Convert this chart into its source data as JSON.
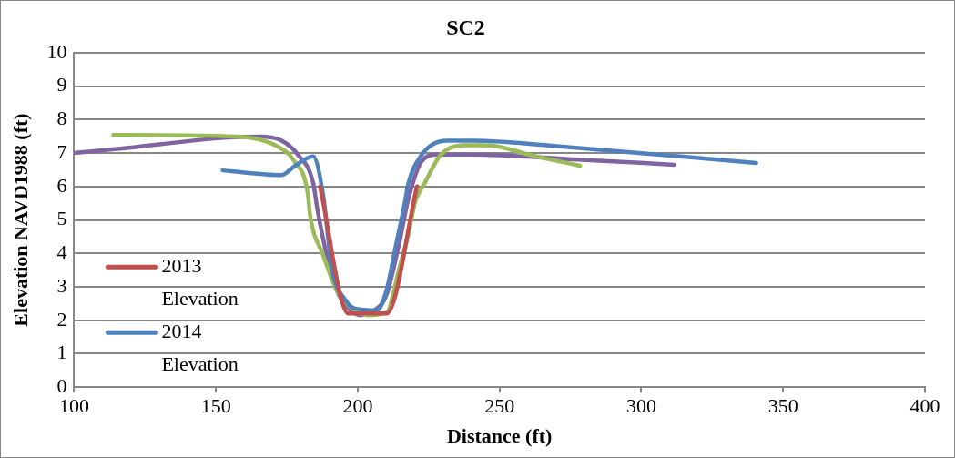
{
  "chart_data": {
    "type": "line",
    "title": "SC2",
    "xlabel": "Distance (ft)",
    "ylabel": "Elevation NAVD1988 (ft)",
    "xlim": [
      100,
      400
    ],
    "xticks": [
      100,
      150,
      200,
      250,
      300,
      350,
      400
    ],
    "ylim": [
      0,
      10
    ],
    "yticks": [
      0,
      1,
      2,
      3,
      4,
      5,
      6,
      7,
      8,
      9,
      10
    ],
    "grid": "y",
    "legend": "bottom left",
    "marker": "none",
    "line_style": "solid",
    "series": [
      {
        "name": "2013 Elevation",
        "color": "#c0504d",
        "x": [
          186.7,
          196.7,
          210.2,
          220.9
        ],
        "values": [
          6.0,
          2.2,
          2.2,
          6.0
        ]
      },
      {
        "name": "2014 Elevation",
        "color": "#4f81bd",
        "x": [
          152.4,
          173.2,
          177.6,
          184.3,
          187.7,
          191,
          195.7,
          199,
          206.8,
          210,
          213.5,
          216.9,
          217.6,
          222.6,
          231.3,
          240.4,
          274,
          340.5
        ],
        "values": [
          6.48,
          6.34,
          6.6,
          6.9,
          5.8,
          3.5,
          2.6,
          2.35,
          2.3,
          2.85,
          4.25,
          5.65,
          6.0,
          6.95,
          7.37,
          7.37,
          7.18,
          6.7
        ]
      },
      {
        "color": "#9bbb59",
        "x": [
          113.8,
          154,
          170.9,
          177.6,
          182.3,
          183.3,
          187.7,
          192.4,
          197.7,
          203.5,
          210.2,
          214.5,
          217.9,
          220.3,
          223.6,
          229.3,
          237,
          244.8,
          262.9,
          278.4
        ],
        "values": [
          7.54,
          7.5,
          7.23,
          6.76,
          5.84,
          5.08,
          3.97,
          2.93,
          2.37,
          2.15,
          2.23,
          3.5,
          4.6,
          5.55,
          6.1,
          6.95,
          7.23,
          7.23,
          6.9,
          6.62
        ]
      },
      {
        "color": "#8064a2",
        "x": [
          100,
          115,
          154,
          165.5,
          173.2,
          178.9,
          184.3,
          185.7,
          189,
          192.4,
          196.7,
          201.1,
          205.8,
          210.2,
          214.5,
          217.9,
          222.6,
          228,
          240.4,
          274,
          311.6
        ],
        "values": [
          7.0,
          7.12,
          7.46,
          7.49,
          7.37,
          6.95,
          6.1,
          5.36,
          3.97,
          2.93,
          2.37,
          2.15,
          2.29,
          2.77,
          4.25,
          5.64,
          6.76,
          6.95,
          6.95,
          6.82,
          6.65
        ]
      }
    ]
  }
}
